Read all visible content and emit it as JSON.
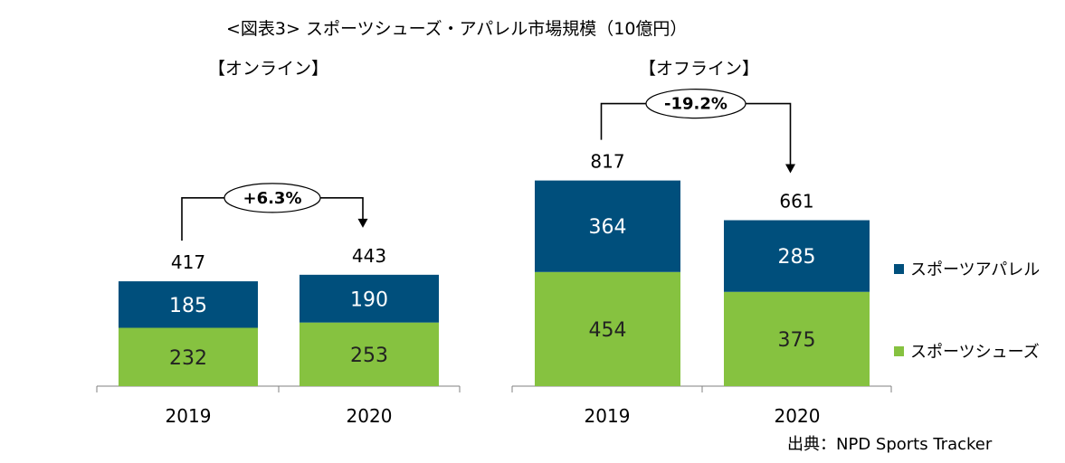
{
  "title": "<図表3> スポーツシューズ・アパレル市場規模（10億円）",
  "source": "出典：NPD Sports Tracker",
  "legend": [
    {
      "label": "スポーツアパレル",
      "color": "#004f7c"
    },
    {
      "label": "スポーツシューズ",
      "color": "#86c240"
    }
  ],
  "chart_data": [
    {
      "type": "bar",
      "stacked": true,
      "title": "【オンライン】",
      "categories": [
        "2019",
        "2020"
      ],
      "series": [
        {
          "name": "スポーツシューズ",
          "values": [
            232,
            253
          ],
          "color": "#86c240"
        },
        {
          "name": "スポーツアパレル",
          "values": [
            185,
            190
          ],
          "color": "#004f7c"
        }
      ],
      "totals": [
        417,
        443
      ],
      "change_label": "+6.3%"
    },
    {
      "type": "bar",
      "stacked": true,
      "title": "【オフライン】",
      "categories": [
        "2019",
        "2020"
      ],
      "series": [
        {
          "name": "スポーツシューズ",
          "values": [
            454,
            375
          ],
          "color": "#86c240"
        },
        {
          "name": "スポーツアパレル",
          "values": [
            364,
            285
          ],
          "color": "#004f7c"
        }
      ],
      "totals": [
        817,
        661
      ],
      "change_label": "-19.2%"
    }
  ]
}
